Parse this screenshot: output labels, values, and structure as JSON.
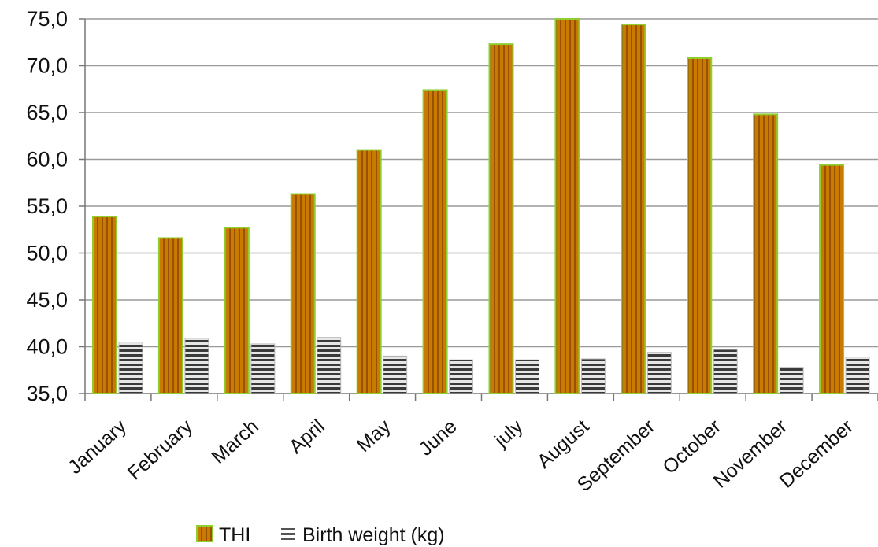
{
  "chart_data": {
    "type": "bar",
    "categories": [
      "January",
      "February",
      "March",
      "April",
      "May",
      "June",
      "july",
      "August",
      "September",
      "October",
      "November",
      "December"
    ],
    "series": [
      {
        "name": "THI",
        "values": [
          53.9,
          51.6,
          52.7,
          56.3,
          61.0,
          67.4,
          72.3,
          75.0,
          74.4,
          70.8,
          64.8,
          59.4
        ],
        "color": "#c77800",
        "edge_color": "#8fce2f"
      },
      {
        "name": "Birth weight (kg)",
        "values": [
          40.5,
          40.9,
          40.3,
          41.0,
          39.0,
          38.6,
          38.6,
          38.7,
          39.4,
          39.7,
          37.8,
          38.9
        ],
        "color": "#8a8a8a"
      }
    ],
    "yticks": [
      "75,0",
      "70,0",
      "65,0",
      "60,0",
      "55,0",
      "50,0",
      "45,0",
      "40,0",
      "35,0"
    ],
    "ylim": [
      35,
      75
    ],
    "grid": true,
    "legend_position": "bottom"
  }
}
